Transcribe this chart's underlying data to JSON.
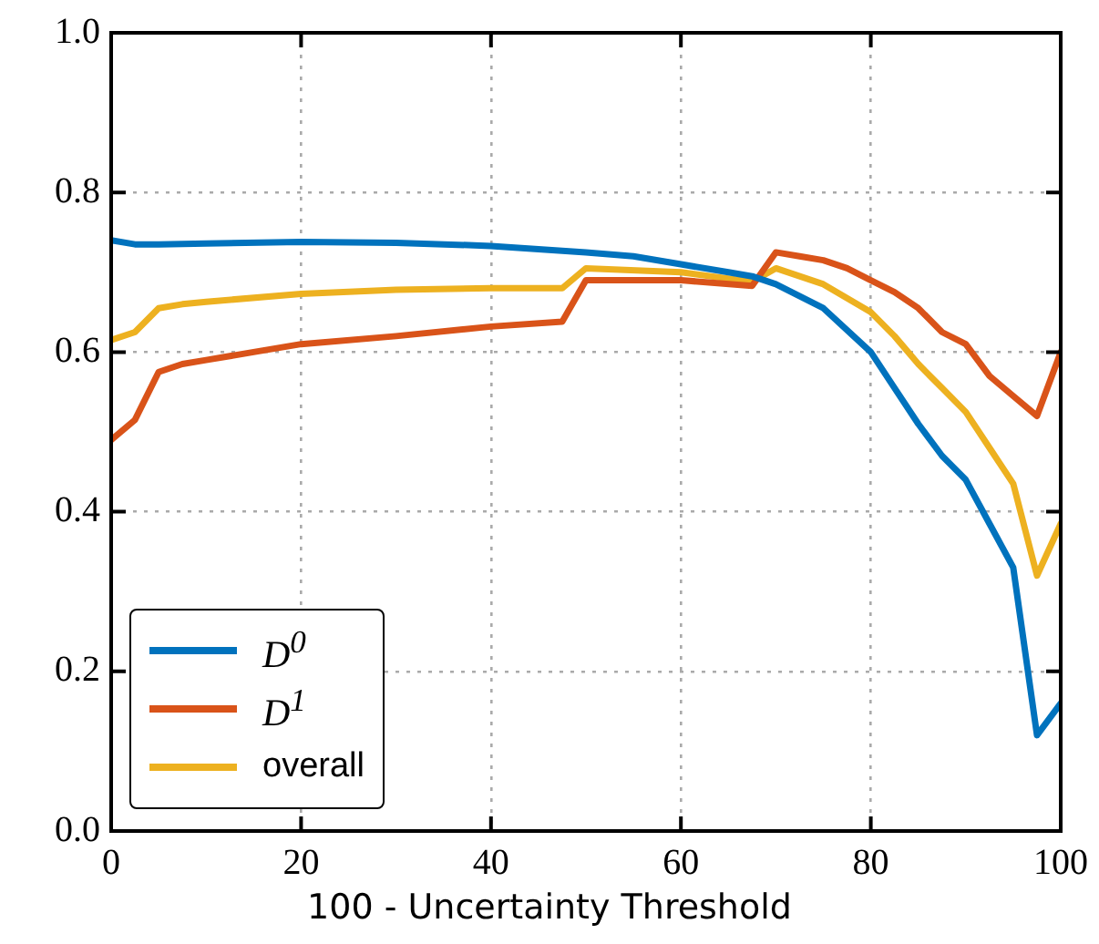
{
  "chart_data": {
    "type": "line",
    "xlabel": "100 - Uncertainty Threshold",
    "xlim": [
      0,
      100
    ],
    "xticks": [
      0,
      20,
      40,
      60,
      80,
      100
    ],
    "ylim": [
      0,
      1
    ],
    "yticks": [
      {
        "value": 0,
        "label": "0.0"
      },
      {
        "value": 0.2,
        "label": "0.2"
      },
      {
        "value": 0.4,
        "label": "0.4"
      },
      {
        "value": 0.6,
        "label": "0.6"
      },
      {
        "value": 0.8,
        "label": "0.8"
      },
      {
        "value": 1,
        "label": "1.0"
      }
    ],
    "grid": true,
    "line_style": "solid",
    "marker": "none",
    "legend": "bottom left",
    "series": [
      {
        "name": "D$^{0}$",
        "color": "#0072bd",
        "x": [
          0,
          2.5,
          5,
          10,
          20,
          30,
          40,
          50,
          55,
          60,
          65,
          67.5,
          70,
          75,
          80,
          82.5,
          85,
          87.5,
          90,
          92.5,
          95,
          97.5,
          100
        ],
        "values": [
          0.74,
          0.735,
          0.735,
          0.736,
          0.738,
          0.737,
          0.733,
          0.725,
          0.72,
          0.71,
          0.7,
          0.695,
          0.685,
          0.655,
          0.6,
          0.555,
          0.51,
          0.47,
          0.44,
          0.385,
          0.33,
          0.12,
          0.16
        ]
      },
      {
        "name": "D$^{1}$",
        "color": "#d95319",
        "x": [
          0,
          2.5,
          5,
          7.5,
          10,
          15,
          20,
          30,
          40,
          47.5,
          50,
          60,
          67.5,
          70,
          72.5,
          75,
          77.5,
          80,
          82.5,
          85,
          87.5,
          90,
          92.5,
          95,
          97.5,
          100
        ],
        "values": [
          0.49,
          0.515,
          0.575,
          0.585,
          0.59,
          0.6,
          0.61,
          0.62,
          0.632,
          0.638,
          0.69,
          0.69,
          0.683,
          0.725,
          0.72,
          0.715,
          0.705,
          0.69,
          0.675,
          0.655,
          0.625,
          0.61,
          0.57,
          0.545,
          0.52,
          0.6
        ]
      },
      {
        "name": "overall",
        "color": "#edb120",
        "x": [
          0,
          2.5,
          5,
          7.5,
          10,
          20,
          30,
          40,
          47.5,
          50,
          60,
          67.5,
          70,
          75,
          80,
          82.5,
          85,
          87.5,
          90,
          92.5,
          95,
          97.5,
          100
        ],
        "values": [
          0.615,
          0.625,
          0.655,
          0.66,
          0.663,
          0.673,
          0.678,
          0.68,
          0.68,
          0.705,
          0.7,
          0.688,
          0.705,
          0.685,
          0.65,
          0.62,
          0.585,
          0.555,
          0.525,
          0.48,
          0.435,
          0.32,
          0.385
        ]
      }
    ]
  }
}
